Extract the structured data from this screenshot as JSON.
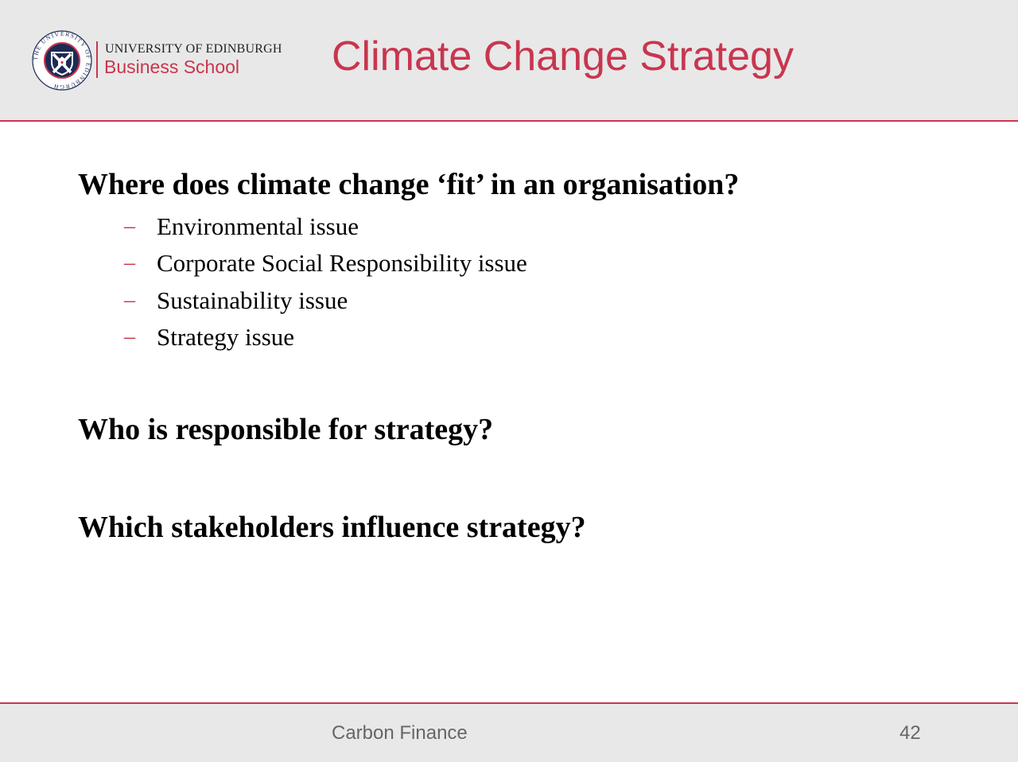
{
  "header": {
    "logo": {
      "university_name": "UNIVERSITY OF EDINBURGH",
      "school_name": "Business School",
      "seal_text": "THE UNIVERSITY OF EDINBURGH"
    },
    "title": "Climate Change Strategy"
  },
  "content": {
    "questions": [
      {
        "text": "Where does climate change ‘fit’ in an organisation?",
        "sub_items": [
          "Environmental issue",
          "Corporate Social Responsibility issue",
          "Sustainability issue",
          "Strategy issue"
        ]
      },
      {
        "text": "Who is responsible for strategy?"
      },
      {
        "text": "Which stakeholders influence strategy?"
      }
    ],
    "bullet_symbol": "–"
  },
  "footer": {
    "title": "Carbon Finance",
    "page_number": "42"
  },
  "colors": {
    "accent": "#c8364e",
    "band_background": "#e8e8e8",
    "footer_text": "#666666",
    "seal_navy": "#1c2b55"
  }
}
